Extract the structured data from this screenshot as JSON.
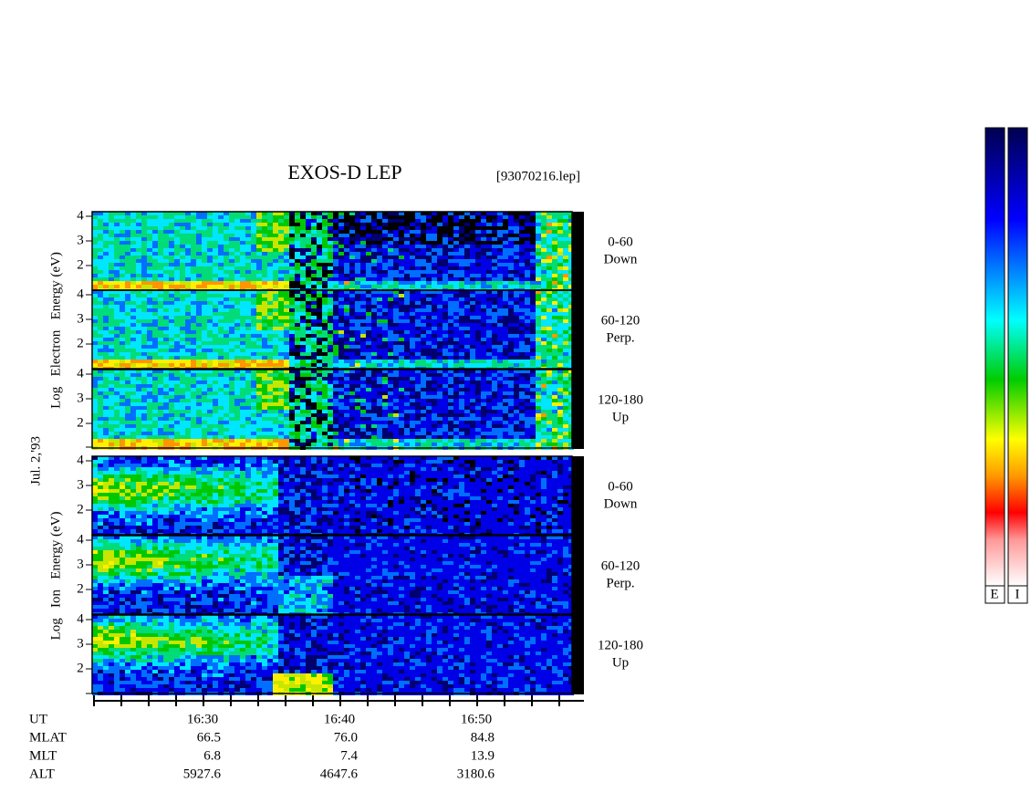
{
  "title": "EXOS-D LEP",
  "file": "[93070216.lep]",
  "date": "Jul. 2,'93",
  "electron_axis_label": "Log   Electron   Energy (eV)",
  "ion_axis_label": "Log   Ion   Energy (eV)",
  "yticks": [
    "4",
    "3",
    "2"
  ],
  "panels": [
    {
      "species": "electron",
      "angle": "0-60",
      "direction": "Down"
    },
    {
      "species": "electron",
      "angle": "60-120",
      "direction": "Perp."
    },
    {
      "species": "electron",
      "angle": "120-180",
      "direction": "Up"
    },
    {
      "species": "ion",
      "angle": "0-60",
      "direction": "Down"
    },
    {
      "species": "ion",
      "angle": "60-120",
      "direction": "Perp."
    },
    {
      "species": "ion",
      "angle": "120-180",
      "direction": "Up"
    }
  ],
  "xticks": [
    "16:30",
    "16:40",
    "16:50"
  ],
  "orbit_rows": [
    {
      "label": "UT",
      "values": []
    },
    {
      "label": "MLAT",
      "values": [
        "66.5",
        "76.0",
        "84.8"
      ]
    },
    {
      "label": "MLT",
      "values": [
        "6.8",
        "7.4",
        "13.9"
      ]
    },
    {
      "label": "ALT",
      "values": [
        "5927.6",
        "4647.6",
        "3180.6"
      ]
    }
  ],
  "colorbar_labels": [
    "E",
    "I"
  ]
}
